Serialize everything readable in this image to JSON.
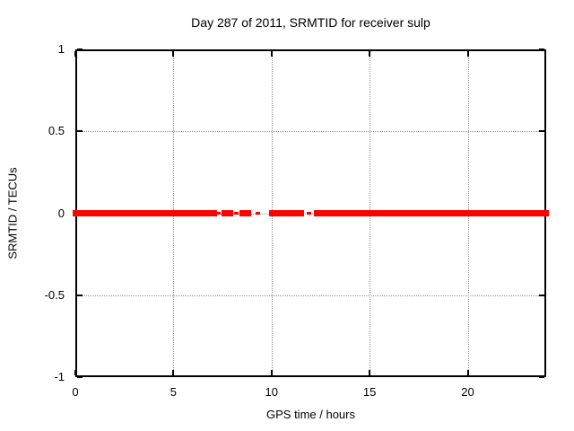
{
  "axes": {
    "x": {
      "label": "GPS time / hours",
      "min": 0,
      "max": 24,
      "ticks": [
        {
          "value": 0,
          "label": "0"
        },
        {
          "value": 5,
          "label": "5"
        },
        {
          "value": 10,
          "label": "10"
        },
        {
          "value": 15,
          "label": "15"
        },
        {
          "value": 20,
          "label": "20"
        }
      ],
      "gridline_values": [
        5,
        10,
        15,
        20
      ]
    },
    "y": {
      "label": "SRMTID / TECUs",
      "min": -1,
      "max": 1,
      "ticks": [
        {
          "value": 1,
          "label": "1"
        },
        {
          "value": 0.5,
          "label": "0.5"
        },
        {
          "value": 0,
          "label": "0"
        },
        {
          "value": -0.5,
          "label": "-0.5"
        },
        {
          "value": -1,
          "label": "-1"
        }
      ],
      "gridline_values": [
        0.5,
        0,
        -0.5
      ]
    }
  },
  "colors": {
    "series": "#ff0000",
    "grid": "#909090",
    "border": "#000000",
    "text": "#000000",
    "background": "#ffffff"
  },
  "chart_data": {
    "type": "line",
    "title": "Day 287 of 2011, SRMTID for receiver sulp",
    "xlabel": "GPS time / hours",
    "ylabel": "SRMTID / TECUs",
    "xlim": [
      0,
      24
    ],
    "ylim": [
      -1,
      1
    ],
    "grid": true,
    "legend": null,
    "series": [
      {
        "name": "SRMTID",
        "color": "#ff0000",
        "y_value": 0,
        "segments_hours": [
          [
            0,
            7.1
          ],
          [
            7.6,
            7.9
          ],
          [
            8.5,
            8.8
          ],
          [
            10.0,
            11.5
          ],
          [
            12.3,
            24.0
          ]
        ],
        "sparse_points_hours": [
          7.3,
          8.2,
          9.3,
          11.9
        ],
        "description": "SRMTID is flat at 0 TECUs for the whole day; data gaps between ~7.1 h and ~12.3 h with a few isolated points"
      }
    ]
  }
}
